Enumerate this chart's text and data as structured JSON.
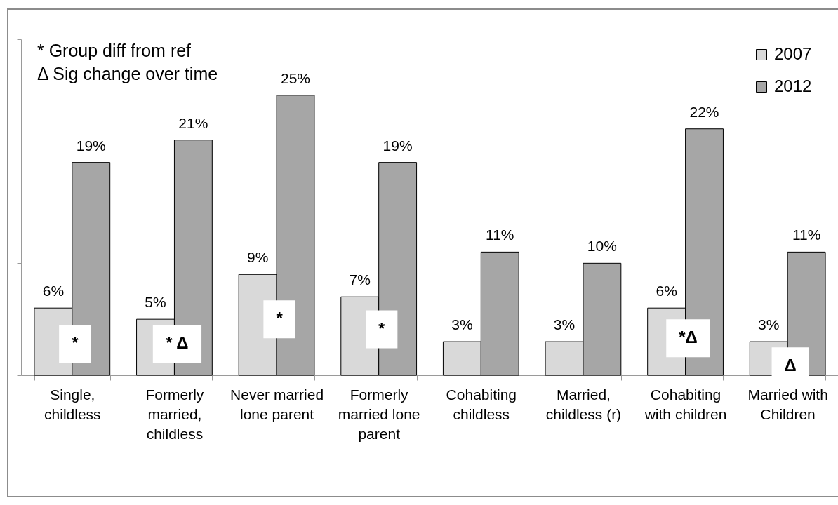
{
  "chart_data": {
    "type": "bar",
    "categories": [
      "Single, childless",
      "Formerly married, childless",
      "Never married lone parent",
      "Formerly married lone parent",
      "Cohabiting childless",
      "Married, childless (r)",
      "Cohabiting with children",
      "Married with Children"
    ],
    "series": [
      {
        "name": "2007",
        "color": "#d9d9d9",
        "values": [
          6,
          5,
          9,
          7,
          3,
          3,
          6,
          3
        ],
        "value_labels": [
          "6%",
          "5%",
          "9%",
          "7%",
          "3%",
          "3%",
          "6%",
          "3%"
        ]
      },
      {
        "name": "2012",
        "color": "#a6a6a6",
        "values": [
          19,
          21,
          25,
          19,
          11,
          10,
          22,
          11
        ],
        "value_labels": [
          "19%",
          "21%",
          "25%",
          "19%",
          "11%",
          "10%",
          "22%",
          "11%"
        ]
      }
    ],
    "ylim": [
      0,
      30
    ],
    "yticks": [
      {
        "value": 0,
        "label": null
      },
      {
        "value": 10,
        "label": null
      },
      {
        "value": 20,
        "label": null
      },
      {
        "value": 30,
        "label": null
      }
    ],
    "tick_labels": "x",
    "legend": "top right",
    "annotations": [
      "* Group diff from ref",
      "Δ Sig change over time",
      {
        "text": "*",
        "x": "Single, childless",
        "y": 2.8
      },
      {
        "text": "* Δ",
        "x": "Formerly married, childless",
        "y": 2.8
      },
      {
        "text": "*",
        "x": "Never married lone parent",
        "y": 5
      },
      {
        "text": "*",
        "x": "Formerly married lone parent",
        "y": 4.1
      },
      {
        "text": "*Δ",
        "x": "Cohabiting with children",
        "y": 3.3
      },
      {
        "text": "Δ",
        "x": "Married with Children",
        "y": 0.8
      }
    ]
  }
}
